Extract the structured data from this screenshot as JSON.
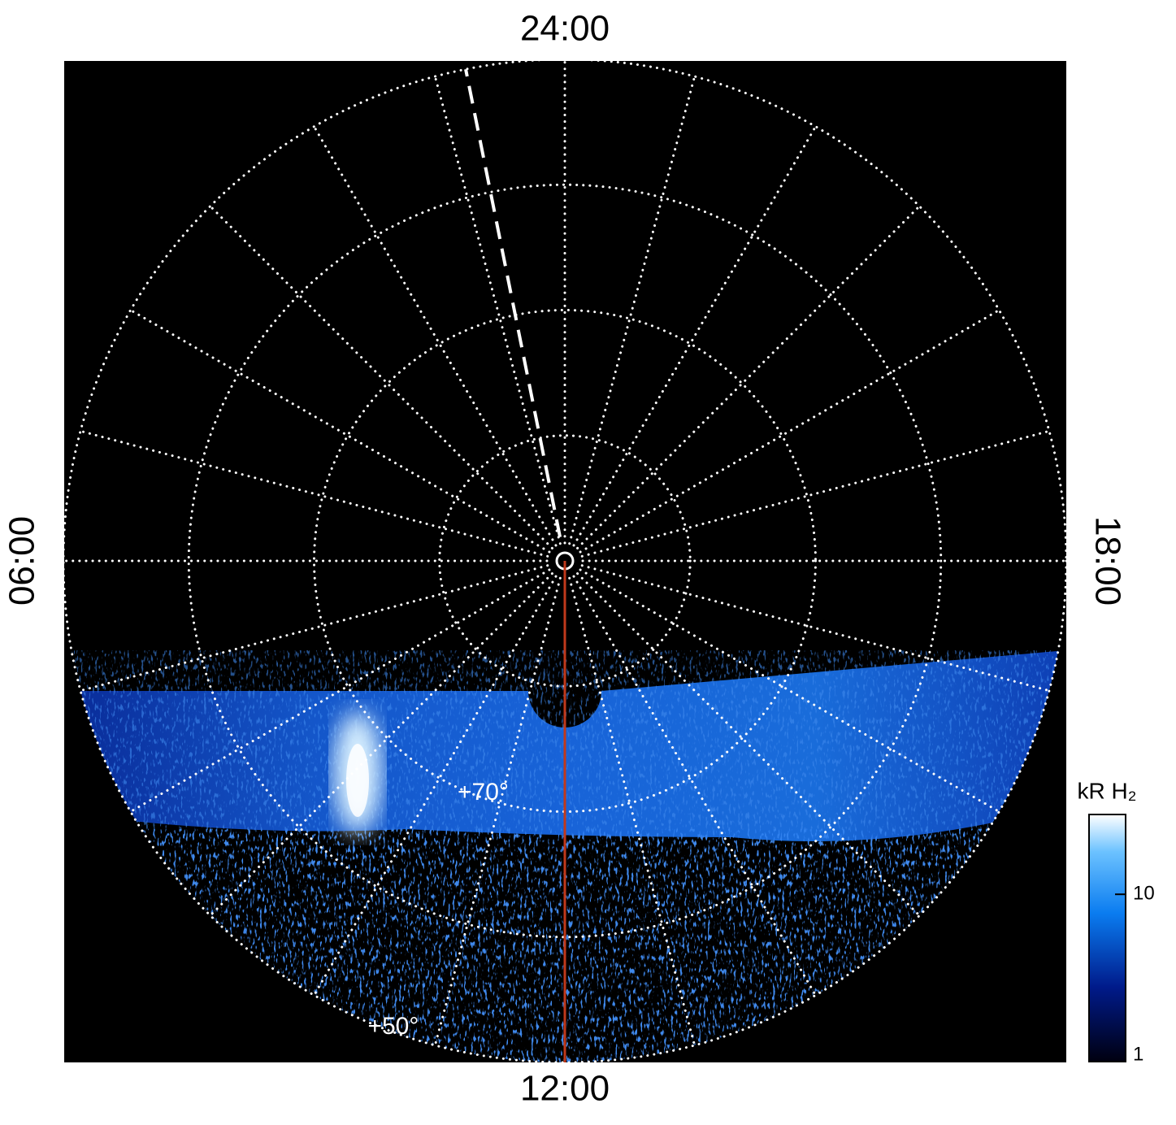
{
  "chart_data": {
    "type": "polar-image",
    "lt_ticks": [
      {
        "value": 0,
        "label": "24:00"
      },
      {
        "value": 6,
        "label": "06:00"
      },
      {
        "value": 12,
        "label": "12:00"
      },
      {
        "value": 18,
        "label": "18:00"
      }
    ],
    "meridian_step": 1,
    "rlim": [
      90,
      50
    ],
    "lat_rings": [
      80,
      70,
      60,
      50
    ],
    "lat_labels": [
      {
        "value": 70,
        "label": "+70°"
      },
      {
        "value": 50,
        "label": "+50°"
      }
    ],
    "label_lt": 10.6,
    "dashed_lt": 0.76,
    "red_lt": 12,
    "red_color": "#c0391b",
    "grid": true,
    "colorbar": {
      "label": "kR H₂",
      "log": true,
      "lim": [
        1,
        30
      ],
      "ticks": [
        1,
        10
      ]
    }
  }
}
